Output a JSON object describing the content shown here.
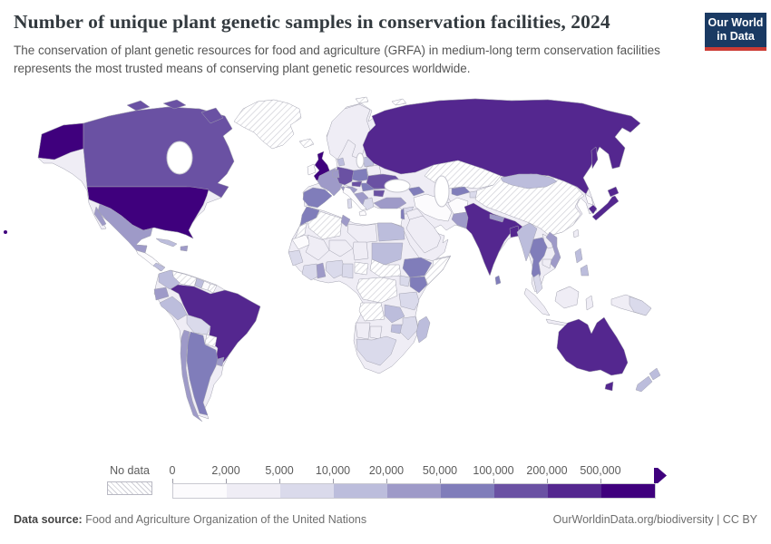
{
  "header": {
    "title": "Number of unique plant genetic samples in conservation facilities, 2024",
    "subtitle": "The conservation of plant genetic resources for food and agriculture (GRFA) in medium-long term conservation facilities represents the most trusted means of conserving plant genetic resources worldwide.",
    "logo": {
      "line1": "Our World",
      "line2": "in Data",
      "bg": "#1a3a63",
      "accent": "#cc3b34"
    }
  },
  "legend": {
    "no_data_label": "No data",
    "tick_labels": [
      "0",
      "2,000",
      "5,000",
      "10,000",
      "20,000",
      "50,000",
      "100,000",
      "200,000",
      "500,000"
    ],
    "bins": [
      "#fcfbfd",
      "#efedf5",
      "#dadaeb",
      "#bcbddc",
      "#9e9ac8",
      "#807dba",
      "#6a51a3",
      "#54278f",
      "#3f007d"
    ]
  },
  "footer": {
    "source_label": "Data source:",
    "source_value": " Food and Agriculture Organization of the United Nations",
    "credit": "OurWorldinData.org/biodiversity | CC BY"
  },
  "map": {
    "sea": "#ffffff",
    "base_fill": "#efedf5",
    "no_data_fill": "url(#hatch)",
    "colors": {
      "usa": "#3f007d",
      "canada": "#6a51a3",
      "mexico": "#9e9ac8",
      "central_america": "#fcfbfd",
      "panama_cr": "#bcbddc",
      "cuba": "#bcbddc",
      "hispaniola": "#9e9ac8",
      "greenland": "url(#hatch)",
      "iceland": "url(#hatch)",
      "colombia": "#bcbddc",
      "venezuela": "url(#hatch)",
      "guyana": "#bcbddc",
      "suriname": "#fcfbfd",
      "french_guiana": "url(#hatch)",
      "ecuador": "#9e9ac8",
      "peru": "#bcbddc",
      "brazil": "#54278f",
      "bolivia": "#dadaeb",
      "paraguay": "url(#hatch)",
      "uruguay": "#9e9ac8",
      "argentina": "#807dba",
      "chile": "#9e9ac8",
      "uk": "#3f007d",
      "ireland": "#fcfbfd",
      "scandinavia": "#efedf5",
      "denmark": "#bcbddc",
      "france": "#9e9ac8",
      "spain": "#807dba",
      "germany": "#6a51a3",
      "benelux": "#9e9ac8",
      "poland": "#807dba",
      "czechia": "#6a51a3",
      "alpine": "#9e9ac8",
      "hungary": "#807dba",
      "balkans": "#9e9ac8",
      "romania": "#807dba",
      "bulgaria": "#6a51a3",
      "greece": "#dadaeb",
      "italy": "#fcfbfd",
      "sardinia": "#dadaeb",
      "baltics": "#bcbddc",
      "belarus": "#efedf5",
      "ukraine": "#6a51a3",
      "russia": "#54278f",
      "turkey": "#9e9ac8",
      "caucasus": "#807dba",
      "kazakhstan": "url(#hatch)",
      "uzbekistan": "#807dba",
      "turkmenistan": "#efedf5",
      "kyrgyz": "#dadaeb",
      "iran": "#fcfbfd",
      "afghanistan": "#fcfbfd",
      "pakistan": "#9e9ac8",
      "india": "#54278f",
      "nepal": "#9e9ac8",
      "bangladesh": "#54278f",
      "sri_lanka": "#807dba",
      "myanmar": "#bcbddc",
      "thailand": "#807dba",
      "laos": "#efedf5",
      "vietnam": "#9e9ac8",
      "cambodia": "#efedf5",
      "malaysia": "#dadaeb",
      "indonesia": "#efedf5",
      "philippines": "#bcbddc",
      "taiwan": "#efedf5",
      "png": "#dadaeb",
      "japan": "#54278f",
      "north_korea": "#fcfbfd",
      "south_korea": "#54278f",
      "mongolia": "#bcbddc",
      "china": "url(#hatch)",
      "saudi": "#efedf5",
      "iraq": "#efedf5",
      "syria": "#dadaeb",
      "israel": "#807dba",
      "morocco": "#807dba",
      "w_sahara": "url(#hatch)",
      "algeria": "url(#hatch)",
      "tunisia": "#9e9ac8",
      "libya": "#efedf5",
      "egypt": "#bcbddc",
      "mauritania": "#fcfbfd",
      "mali": "#efedf5",
      "niger": "#efedf5",
      "chad": "#efedf5",
      "senegal": "#dadaeb",
      "ivory": "#dadaeb",
      "ghana": "#9e9ac8",
      "nigeria": "#dadaeb",
      "cameroon": "#dadaeb",
      "car": "url(#hatch)",
      "sudan": "#bcbddc",
      "s_sudan": "url(#hatch)",
      "ethiopia": "#807dba",
      "somalia": "url(#hatch)",
      "kenya": "#807dba",
      "uganda": "#dadaeb",
      "drc": "url(#hatch)",
      "tanzania": "#dadaeb",
      "angola": "url(#hatch)",
      "zambia": "#bcbddc",
      "mozambique": "#dadaeb",
      "zimbabwe": "#bcbddc",
      "namibia": "#efedf5",
      "botswana": "#efedf5",
      "south_africa": "#dadaeb",
      "madagascar": "#bcbddc",
      "australia": "#54278f",
      "nz": "#bcbddc",
      "svalbard": "url(#hatch)"
    }
  },
  "chart_data": {
    "type": "heatmap",
    "subtype": "choropleth-world-map",
    "title": "Number of unique plant genetic samples in conservation facilities, 2024",
    "unit": "samples",
    "bin_edges": [
      0,
      2000,
      5000,
      10000,
      20000,
      50000,
      100000,
      200000,
      500000
    ],
    "bin_colors": [
      "#fcfbfd",
      "#efedf5",
      "#dadaeb",
      "#bcbddc",
      "#9e9ac8",
      "#807dba",
      "#6a51a3",
      "#54278f",
      "#3f007d"
    ],
    "no_data_style": "diagonal-hatch",
    "legend_position": "bottom",
    "entities_by_bin": {
      "500,000+": [
        "United States",
        "United Kingdom"
      ],
      "200,000-500,000": [
        "Russia",
        "Brazil",
        "India",
        "Bangladesh",
        "Japan",
        "South Korea",
        "Australia"
      ],
      "100,000-200,000": [
        "Canada",
        "Germany",
        "Czechia",
        "Ukraine",
        "Bulgaria"
      ],
      "50,000-100,000": [
        "Spain",
        "Portugal",
        "Poland",
        "Romania",
        "Hungary",
        "Morocco",
        "Ethiopia",
        "Kenya",
        "Thailand",
        "Uzbekistan",
        "Argentina",
        "Sri Lanka",
        "Israel"
      ],
      "20,000-50,000": [
        "Mexico",
        "France",
        "Turkey",
        "Chile",
        "Ecuador",
        "Uruguay",
        "Pakistan",
        "Nepal",
        "Vietnam",
        "Ghana",
        "Tunisia",
        "Austria",
        "Switzerland",
        "Serbia"
      ],
      "10,000-20,000": [
        "Colombia",
        "Peru",
        "Guyana",
        "Cuba",
        "Mongolia",
        "Myanmar",
        "Philippines",
        "New Zealand",
        "Egypt",
        "Sudan",
        "Zambia",
        "Zimbabwe",
        "Madagascar",
        "Denmark",
        "Baltic states"
      ],
      "5,000-10,000": [
        "Bolivia",
        "South Africa",
        "Tanzania",
        "Uganda",
        "Nigeria",
        "Cameroon",
        "Ivory Coast",
        "Senegal",
        "Greece",
        "Malaysia",
        "Papua New Guinea"
      ],
      "2,000-5,000": [
        "Norway",
        "Sweden",
        "Finland",
        "Belarus",
        "Libya",
        "Mali",
        "Niger",
        "Chad",
        "Saudi Arabia",
        "Iraq",
        "Laos",
        "Cambodia",
        "Indonesia",
        "Taiwan",
        "Namibia",
        "Botswana"
      ],
      "0-2,000": [
        "Ireland",
        "Italy",
        "Iran",
        "Afghanistan",
        "Mauritania",
        "Suriname",
        "North Korea",
        "Central America"
      ],
      "No data": [
        "China",
        "Kazakhstan",
        "Greenland",
        "Iceland",
        "Algeria",
        "Western Sahara",
        "DR Congo",
        "Angola",
        "Somalia",
        "South Sudan",
        "Central African Republic",
        "Venezuela",
        "Paraguay",
        "French Guiana"
      ]
    }
  }
}
